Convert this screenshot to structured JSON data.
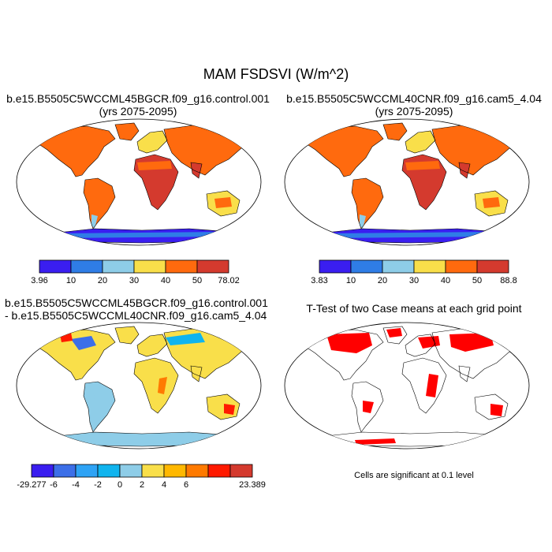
{
  "title": "MAM FSDSVI (W/m^2)",
  "panels": [
    {
      "id": "p1",
      "title_line1": "b.e15.B5505C5WCCML45BGCR.f09_g16.control.001",
      "title_line2": "(yrs 2075-2095)",
      "colorbar": {
        "colors": [
          "#3a1ef0",
          "#2f7de6",
          "#8ecde8",
          "#f9df4a",
          "#ff6a0e",
          "#d43a2e"
        ],
        "labels": [
          "3.96",
          "10",
          "20",
          "30",
          "40",
          "50",
          "78.02"
        ]
      }
    },
    {
      "id": "p2",
      "title_line1": "b.e15.B5505C5WCCML40CNR.f09_g16.cam5_4.04",
      "title_line2": "(yrs 2075-2095)",
      "colorbar": {
        "colors": [
          "#3a1ef0",
          "#2f7de6",
          "#8ecde8",
          "#f9df4a",
          "#ff6a0e",
          "#d43a2e"
        ],
        "labels": [
          "3.83",
          "10",
          "20",
          "30",
          "40",
          "50",
          "88.8"
        ]
      }
    },
    {
      "id": "p3",
      "title_line1": "b.e15.B5505C5WCCML45BGCR.f09_g16.control.001",
      "title_line2": "- b.e15.B5505C5WCCML40CNR.f09_g16.cam5_4.04",
      "colorbar": {
        "colors": [
          "#3a1ef0",
          "#3c6fe8",
          "#2ea3f5",
          "#10b4ee",
          "#8ecde8",
          "#f9df4a",
          "#ffb800",
          "#ff7a00",
          "#ff1a00",
          "#d43a2e"
        ],
        "labels": [
          "-29.277",
          "-6",
          "-4",
          "-2",
          "0",
          "2",
          "4",
          "6",
          "23.389"
        ]
      }
    },
    {
      "id": "p4",
      "title_line1": "T-Test of two Case means at each grid point",
      "note": "Cells are significant at 0.1 level"
    }
  ]
}
